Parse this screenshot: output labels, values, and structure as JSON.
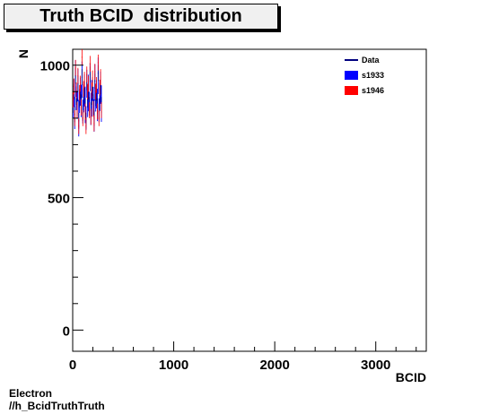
{
  "chart_data": {
    "type": "bar",
    "title": "Truth BCID  distribution",
    "xlabel": "BCID",
    "ylabel": "N",
    "xlim": [
      0,
      3500
    ],
    "ylim": [
      -80,
      1060
    ],
    "xticks": [
      0,
      1000,
      2000,
      3000
    ],
    "yticks": [
      0,
      500,
      1000
    ],
    "grid": false,
    "legend_position": "top-right",
    "bin_width": 8,
    "x_start": 0,
    "series": [
      {
        "name": "Data",
        "kind": "line",
        "color": "#00007f",
        "values": [
          850,
          900,
          815,
          960,
          880,
          845,
          930,
          790,
          870,
          905,
          860,
          955,
          820,
          880,
          910,
          845,
          790,
          935,
          870,
          900,
          850,
          965,
          830,
          880,
          915,
          860,
          800,
          940,
          875,
          895,
          845,
          970,
          825,
          885,
          920,
          850
        ]
      },
      {
        "name": "s1933",
        "kind": "fill",
        "color": "#0000ff",
        "values": [
          845,
          895,
          820,
          950,
          875,
          850,
          925,
          800,
          865,
          900,
          865,
          945,
          825,
          875,
          905,
          850,
          800,
          930,
          865,
          895,
          855,
          955,
          835,
          875,
          910,
          865,
          810,
          935,
          870,
          890,
          850,
          960,
          830,
          880,
          915,
          855
        ]
      },
      {
        "name": "s1946",
        "kind": "line",
        "color": "#ff0000",
        "values": [
          870,
          920,
          800,
          990,
          905,
          830,
          960,
          770,
          895,
          930,
          840,
          1030,
          800,
          910,
          945,
          825,
          770,
          965,
          900,
          930,
          830,
          1005,
          805,
          905,
          950,
          835,
          780,
          975,
          900,
          925,
          825,
          1010,
          800,
          915,
          955,
          830
        ]
      }
    ],
    "annotations": [
      "Electron",
      "//h_BcidTruthTruth"
    ]
  }
}
